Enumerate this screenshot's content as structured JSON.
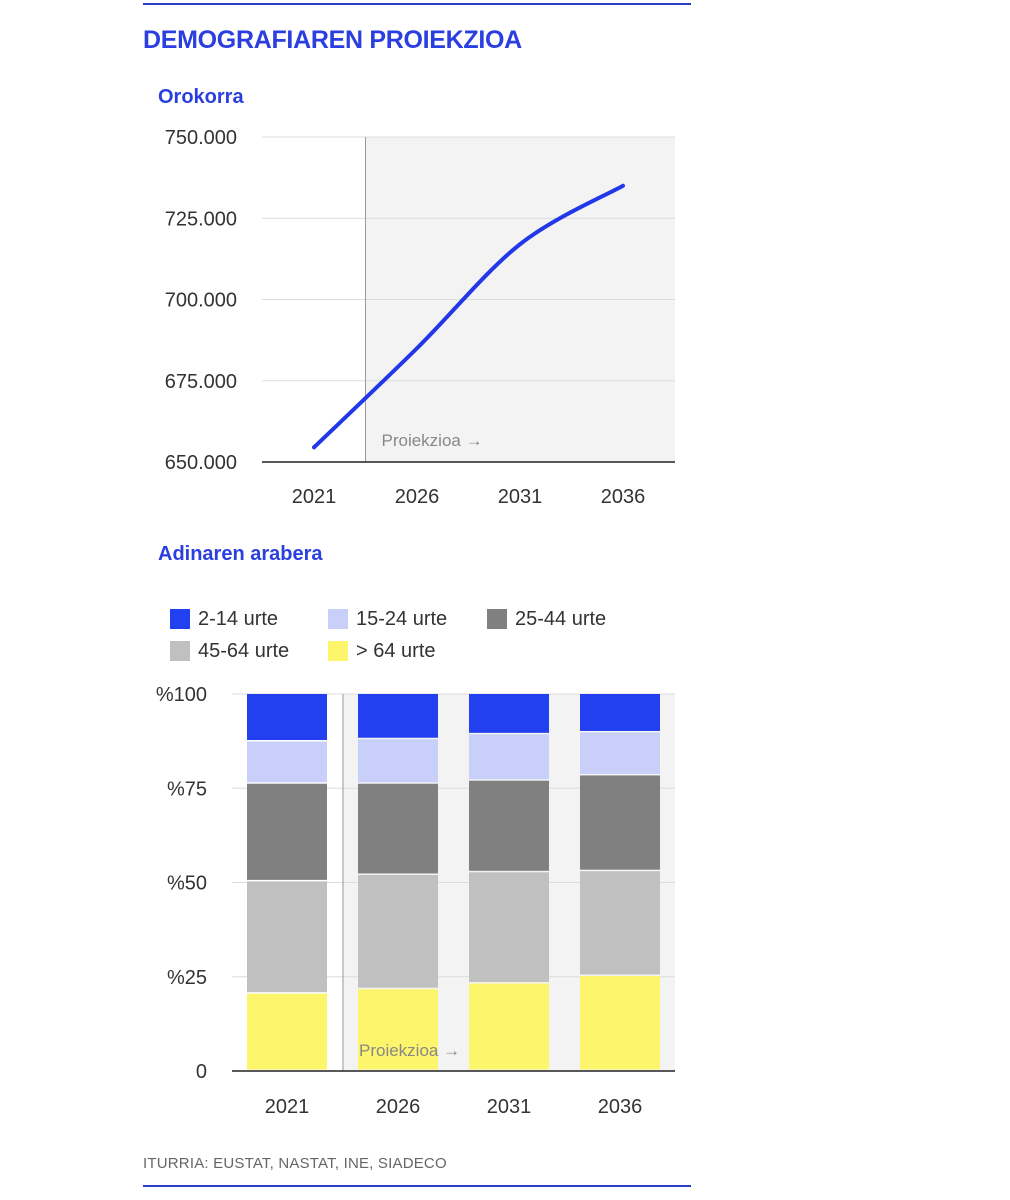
{
  "header": {
    "title": "DEMOGRAFIAREN PROIEKZIOA"
  },
  "source": "ITURRIA: EUSTAT, NASTAT, INE, SIADECO",
  "colors": {
    "accent": "#2b3fe0",
    "line": "#2238e8",
    "projection_bg": "#f3f3f3",
    "grid": "#dcdcdc"
  },
  "chart_data": [
    {
      "type": "line",
      "title": "Orokorra",
      "x": [
        2021,
        2026,
        2031,
        2036
      ],
      "xlabels": [
        "2021",
        "2026",
        "2031",
        "2036"
      ],
      "series": [
        {
          "values": [
            654500,
            685000,
            717000,
            735000
          ]
        }
      ],
      "ylim": [
        650000,
        750000
      ],
      "yticks": [
        650000,
        675000,
        700000,
        725000,
        750000
      ],
      "ytick_labels": [
        "650.000",
        "675.000",
        "700.000",
        "725.000",
        "750.000"
      ],
      "projection_label": "Proiekzioa",
      "projection_start_x": 2023.5,
      "grid": true
    },
    {
      "type": "bar",
      "stacked": true,
      "title": "Adinaren arabera",
      "categories": [
        "2021",
        "2026",
        "2031",
        "2036"
      ],
      "legend": [
        "2-14 urte",
        "15-24 urte",
        "25-44 urte",
        "45-64 urte",
        "> 64 urte"
      ],
      "legend_placement": "top",
      "series": [
        {
          "name": "> 64 urte",
          "color": "#fdf56b",
          "values": [
            20.5,
            21.7,
            23.2,
            25.2
          ]
        },
        {
          "name": "45-64 urte",
          "color": "#c0c0c0",
          "values": [
            29.8,
            30.3,
            29.5,
            27.8
          ]
        },
        {
          "name": "25-44 urte",
          "color": "#808080",
          "values": [
            25.9,
            24.2,
            24.3,
            25.4
          ]
        },
        {
          "name": "15-24 urte",
          "color": "#c8d0fa",
          "values": [
            11.2,
            11.8,
            12.3,
            11.4
          ]
        },
        {
          "name": "2-14 urte",
          "color": "#2240f0",
          "values": [
            12.6,
            12.0,
            10.7,
            10.2
          ]
        }
      ],
      "ylim": [
        0,
        100
      ],
      "ytick_labels": [
        "0",
        "%25",
        "%50",
        "%75",
        "%100"
      ],
      "projection_label": "Proiekzioa",
      "grid": true
    }
  ]
}
